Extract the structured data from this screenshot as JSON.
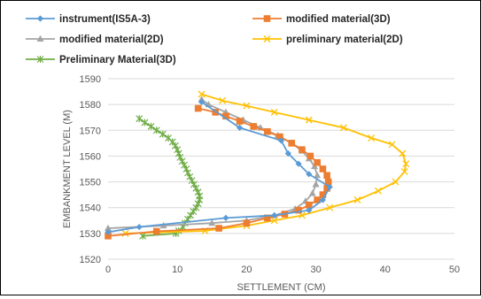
{
  "chart_data": {
    "type": "line",
    "xlabel": "SETTLEMENT (CM)",
    "ylabel": "EMBANKMENT LEVEL (M)",
    "xlim": [
      0,
      50
    ],
    "ylim": [
      1520,
      1590
    ],
    "xticks": [
      0,
      10,
      20,
      30,
      40,
      50
    ],
    "yticks": [
      1520,
      1530,
      1540,
      1550,
      1560,
      1570,
      1580,
      1590
    ],
    "grid": "horizontal",
    "legend_position": "top",
    "series": [
      {
        "name": "instrument(IS5A-3)",
        "color": "#5B9BD5",
        "marker": "diamond",
        "points": [
          [
            0,
            1530.5
          ],
          [
            4.5,
            1532.5
          ],
          [
            17,
            1536
          ],
          [
            24,
            1537
          ],
          [
            29,
            1539
          ],
          [
            31,
            1543
          ],
          [
            32,
            1548
          ],
          [
            29,
            1553
          ],
          [
            27.5,
            1557
          ],
          [
            26,
            1561
          ],
          [
            25,
            1566
          ],
          [
            19,
            1571
          ],
          [
            13.5,
            1581
          ]
        ]
      },
      {
        "name": "modified material(3D)",
        "color": "#ED7D31",
        "marker": "square",
        "points": [
          [
            0,
            1529
          ],
          [
            7,
            1530.8
          ],
          [
            16,
            1532
          ],
          [
            20,
            1534
          ],
          [
            23,
            1536
          ],
          [
            25.5,
            1537.5
          ],
          [
            27.5,
            1539
          ],
          [
            29,
            1541
          ],
          [
            30.2,
            1543
          ],
          [
            31,
            1545
          ],
          [
            31.6,
            1547.5
          ],
          [
            31.8,
            1550
          ],
          [
            31.6,
            1552.5
          ],
          [
            31,
            1555
          ],
          [
            30.2,
            1557.5
          ],
          [
            29.2,
            1560
          ],
          [
            28,
            1562.5
          ],
          [
            26.5,
            1565
          ],
          [
            24.8,
            1567.5
          ],
          [
            23,
            1569.5
          ],
          [
            21,
            1571.5
          ],
          [
            19,
            1573.5
          ],
          [
            17,
            1575.5
          ],
          [
            15.5,
            1577
          ],
          [
            13,
            1578.5
          ]
        ]
      },
      {
        "name": "modified material(2D)",
        "color": "#A5A5A5",
        "marker": "triangle",
        "points": [
          [
            0,
            1532
          ],
          [
            8,
            1533
          ],
          [
            15,
            1534
          ],
          [
            20,
            1535
          ],
          [
            24,
            1537
          ],
          [
            27,
            1539.5
          ],
          [
            28.5,
            1542.5
          ],
          [
            29.5,
            1545.5
          ],
          [
            30,
            1549
          ],
          [
            30.2,
            1552.5
          ],
          [
            29.8,
            1556
          ],
          [
            29,
            1559
          ],
          [
            28,
            1562
          ],
          [
            26.5,
            1565
          ],
          [
            24.5,
            1568
          ],
          [
            22,
            1571
          ],
          [
            19.5,
            1574
          ],
          [
            17,
            1577
          ],
          [
            14.5,
            1580
          ],
          [
            13.5,
            1582
          ]
        ]
      },
      {
        "name": "preliminary material(2D)",
        "color": "#FFC000",
        "marker": "x",
        "points": [
          [
            2.5,
            1530
          ],
          [
            14,
            1531
          ],
          [
            20,
            1533
          ],
          [
            24,
            1535
          ],
          [
            28,
            1537
          ],
          [
            32,
            1540
          ],
          [
            36,
            1543
          ],
          [
            39,
            1546.5
          ],
          [
            41.5,
            1550
          ],
          [
            42.8,
            1554
          ],
          [
            43,
            1557
          ],
          [
            42.5,
            1561
          ],
          [
            41,
            1564.5
          ],
          [
            38,
            1567
          ],
          [
            34,
            1571
          ],
          [
            29,
            1574
          ],
          [
            24,
            1577
          ],
          [
            20,
            1579.5
          ],
          [
            16.5,
            1581.5
          ],
          [
            13.5,
            1584
          ]
        ]
      },
      {
        "name": "Preliminary Material(3D)",
        "color": "#70AD47",
        "marker": "star",
        "points": [
          [
            5,
            1529
          ],
          [
            9.8,
            1530
          ],
          [
            10.2,
            1531
          ],
          [
            10.8,
            1532.5
          ],
          [
            11.1,
            1534
          ],
          [
            11.5,
            1535.5
          ],
          [
            11.9,
            1537
          ],
          [
            12.3,
            1538.5
          ],
          [
            12.7,
            1540
          ],
          [
            13,
            1541.5
          ],
          [
            13.2,
            1543
          ],
          [
            13.2,
            1544.5
          ],
          [
            13,
            1546
          ],
          [
            12.7,
            1547.5
          ],
          [
            12.4,
            1549
          ],
          [
            12.1,
            1550.5
          ],
          [
            11.8,
            1552
          ],
          [
            11.5,
            1553.5
          ],
          [
            11.3,
            1555
          ],
          [
            11,
            1556.5
          ],
          [
            10.7,
            1558
          ],
          [
            10.4,
            1559.5
          ],
          [
            10.2,
            1561
          ],
          [
            10,
            1562.5
          ],
          [
            9.7,
            1564
          ],
          [
            9.3,
            1565.5
          ],
          [
            8.7,
            1567
          ],
          [
            7.9,
            1568.5
          ],
          [
            7,
            1570
          ],
          [
            6.2,
            1571.5
          ],
          [
            5.3,
            1573
          ],
          [
            4.5,
            1574.5
          ]
        ]
      }
    ]
  }
}
